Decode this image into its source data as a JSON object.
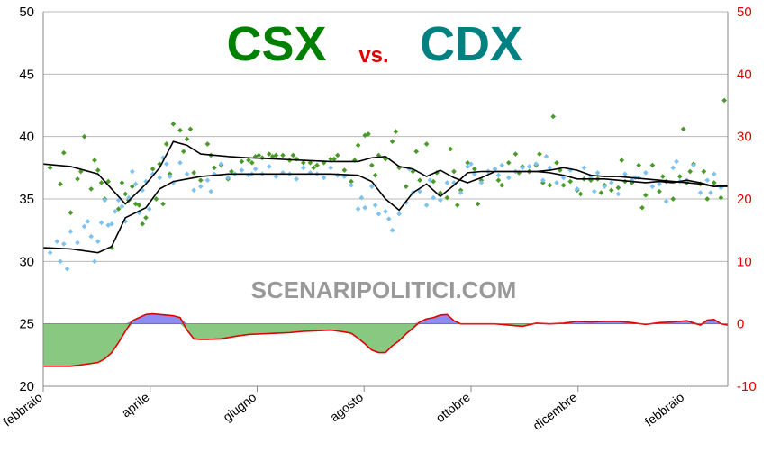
{
  "chart_data": {
    "type": "scatter",
    "title_parts": [
      "CSX",
      "vs.",
      "CDX"
    ],
    "title_colors": [
      "#008000",
      "#e00000",
      "#008080"
    ],
    "watermark": "SCENARIPOLITICI.COM",
    "ylim_left": [
      20,
      50
    ],
    "ylim_right": [
      -10,
      50
    ],
    "yticks_left": [
      "20",
      "25",
      "30",
      "35",
      "40",
      "45",
      "50"
    ],
    "yticks_right": [
      "-10",
      "0",
      "10",
      "20",
      "30",
      "40",
      "50"
    ],
    "xticks": [
      "febbraio",
      "aprile",
      "giugno",
      "agosto",
      "ottobre",
      "dicembre",
      "febbraio"
    ],
    "grid": true,
    "colors": {
      "csx_points": "#4a9a2a",
      "cdx_points": "#7ec3f0",
      "trend": "#000000",
      "diff_line": "#e00000",
      "diff_positive": "#8c8cf0",
      "diff_negative": "#88c880"
    },
    "series": [
      {
        "kind": "trend",
        "axis": "left",
        "x": [
          0,
          4,
          8,
          10,
          12,
          15,
          17,
          19,
          21,
          23,
          25,
          27,
          30,
          34,
          38,
          42,
          46,
          48,
          50,
          52,
          54,
          56,
          58,
          60,
          62,
          64,
          66,
          68,
          70,
          72,
          74,
          76,
          78,
          80,
          82,
          84,
          86,
          88,
          90,
          92,
          94,
          96,
          98,
          100
        ],
        "values": [
          37.8,
          37.6,
          37.0,
          35.8,
          34.6,
          36.2,
          37.5,
          39.6,
          39.3,
          38.6,
          38.5,
          38.4,
          38.3,
          38.2,
          38.1,
          38.0,
          38.0,
          38.3,
          38.4,
          37.6,
          37.4,
          36.8,
          37.3,
          36.7,
          36.3,
          36.7,
          37.2,
          37.2,
          37.2,
          37.2,
          37.3,
          37.5,
          37.3,
          36.9,
          36.8,
          36.8,
          36.7,
          36.6,
          36.5,
          36.4,
          36.3,
          36.2,
          36.0,
          36.1
        ]
      },
      {
        "kind": "trend",
        "axis": "left",
        "x": [
          0,
          4,
          8,
          10,
          12,
          15,
          17,
          19,
          21,
          23,
          25,
          27,
          30,
          34,
          38,
          42,
          46,
          48,
          50,
          52,
          54,
          56,
          58,
          60,
          62,
          64,
          66,
          68,
          70,
          72,
          74,
          76,
          78,
          80,
          82,
          84,
          86,
          88,
          90,
          92,
          94,
          96,
          98,
          100
        ],
        "values": [
          31.1,
          31.0,
          30.7,
          31.2,
          33.5,
          34.3,
          35.8,
          36.4,
          36.6,
          36.8,
          36.9,
          37.0,
          37.0,
          37.0,
          37.0,
          37.0,
          36.9,
          36.4,
          35.0,
          34.1,
          35.5,
          36.2,
          35.2,
          36.1,
          37.1,
          37.2,
          37.2,
          37.2,
          37.2,
          37.2,
          37.1,
          36.9,
          36.6,
          36.6,
          36.6,
          36.5,
          36.4,
          36.3,
          36.4,
          36.3,
          36.5,
          36.3,
          36.0,
          36.0
        ]
      },
      {
        "kind": "difference",
        "axis": "right",
        "x": [
          0,
          2,
          4,
          6,
          8,
          9,
          10,
          11,
          12,
          13,
          14,
          15,
          16,
          17,
          18,
          19,
          20,
          21,
          22,
          23,
          24,
          26,
          28,
          30,
          32,
          34,
          36,
          38,
          40,
          42,
          44,
          45,
          46,
          47,
          48,
          49,
          50,
          51,
          52,
          53,
          54,
          55,
          56,
          57,
          58,
          59,
          60,
          61,
          62,
          63,
          64,
          66,
          68,
          70,
          72,
          74,
          76,
          78,
          80,
          82,
          84,
          86,
          88,
          90,
          92,
          94,
          96,
          97,
          98,
          99,
          100
        ],
        "values": [
          -6.8,
          -6.8,
          -6.8,
          -6.5,
          -6.2,
          -5.6,
          -4.6,
          -3.0,
          -1.2,
          0.5,
          1.0,
          1.5,
          1.6,
          1.5,
          1.4,
          1.3,
          1.0,
          -1.0,
          -2.4,
          -2.5,
          -2.5,
          -2.4,
          -2.0,
          -1.7,
          -1.6,
          -1.5,
          -1.4,
          -1.2,
          -1.1,
          -1.0,
          -1.3,
          -1.5,
          -2.3,
          -3.2,
          -4.2,
          -4.6,
          -4.6,
          -3.5,
          -2.7,
          -1.6,
          -0.7,
          0.3,
          0.8,
          1.0,
          1.4,
          1.5,
          0.5,
          0.0,
          0.0,
          0.0,
          0.0,
          0.0,
          -0.2,
          -0.4,
          0.1,
          0.0,
          0.1,
          0.4,
          0.3,
          0.4,
          0.4,
          0.2,
          -0.1,
          0.2,
          0.3,
          0.5,
          -0.2,
          0.6,
          0.7,
          0.0,
          -0.2
        ]
      },
      {
        "kind": "points",
        "name": "CSX",
        "axis": "left",
        "x": [
          1,
          2.5,
          3,
          4,
          5,
          5.5,
          6,
          7,
          8,
          8.5,
          9,
          9.5,
          10,
          11,
          12,
          12.5,
          13,
          13.5,
          14,
          15,
          16,
          16.5,
          17,
          18,
          18.5,
          19,
          20,
          21,
          22,
          23,
          24,
          25,
          26,
          27,
          28,
          29,
          30,
          31,
          32,
          33,
          34,
          35,
          36,
          37,
          38,
          39,
          40,
          41,
          42,
          43,
          44,
          45,
          46,
          47,
          48,
          49,
          50,
          51,
          52,
          53,
          54,
          55,
          56,
          57,
          58,
          59,
          60,
          61,
          62,
          63,
          64,
          65,
          66,
          67,
          68,
          69,
          70,
          71,
          72,
          73,
          74,
          75,
          76,
          77,
          78,
          79,
          80,
          81,
          82,
          83,
          84,
          85,
          86,
          87,
          88,
          89,
          90,
          91,
          92,
          93,
          94,
          95,
          96,
          97,
          98,
          99,
          7.5,
          11.5,
          14.5,
          17.5,
          21.5,
          24.5,
          27.5,
          30.5,
          33.5,
          36.5,
          39.5,
          42.5,
          45.5,
          48.5,
          51.5,
          54.5,
          57.5,
          60.5,
          63.5,
          66.5,
          69.5,
          72.5,
          75.5,
          78.5,
          81.5,
          84.5,
          87.5,
          90.5,
          93.5,
          96.5,
          99.5,
          20.5,
          31.5,
          47.5,
          59.5,
          74.5,
          94.5
        ],
        "values": [
          37.5,
          36.2,
          38.7,
          33.9,
          36.6,
          37.2,
          40.0,
          35.8,
          37.3,
          36.3,
          35.0,
          36.4,
          31.1,
          34.2,
          35.4,
          34.9,
          36.0,
          34.6,
          34.5,
          33.5,
          37.4,
          35.0,
          37.8,
          39.4,
          37.0,
          41.0,
          40.5,
          39.8,
          37.1,
          36.5,
          39.4,
          37.5,
          37.7,
          36.6,
          37.0,
          38.0,
          38.1,
          38.4,
          38.3,
          38.6,
          38.5,
          38.5,
          38.1,
          38.2,
          37.9,
          37.9,
          37.7,
          37.9,
          38.2,
          38.5,
          37.3,
          36.4,
          39.3,
          40.1,
          37.7,
          38.5,
          38.2,
          39.6,
          37.5,
          36.0,
          37.2,
          36.5,
          39.4,
          36.4,
          35.5,
          35.1,
          37.2,
          35.7,
          37.9,
          37.4,
          36.5,
          37.2,
          37.4,
          36.1,
          37.9,
          38.6,
          37.6,
          37.2,
          37.7,
          36.3,
          36.1,
          37.9,
          36.1,
          36.4,
          35.7,
          36.6,
          36.5,
          36.6,
          36.1,
          35.7,
          35.9,
          36.4,
          36.3,
          37.7,
          35.3,
          37.7,
          35.6,
          36.4,
          35.0,
          36.8,
          36.3,
          37.8,
          36.2,
          35.0,
          36.3,
          35.1,
          38.1,
          36.3,
          33.0,
          34.6,
          40.6,
          38.5,
          37.2,
          37.9,
          38.4,
          38.5,
          37.5,
          38.2,
          38.1,
          36.9,
          40.4,
          38.8,
          37.1,
          34.5,
          34.6,
          36.5,
          37.1,
          38.6,
          37.3,
          35.4,
          35.5,
          38.1,
          34.3,
          36.8,
          40.6,
          37.2,
          42.9,
          38.8,
          38.5,
          40.2,
          39.0,
          41.6,
          37.2
        ]
      },
      {
        "kind": "points",
        "name": "CDX",
        "axis": "left",
        "x": [
          1,
          2,
          2.5,
          3,
          4,
          5,
          6,
          6.5,
          7,
          8,
          8.5,
          9,
          9.5,
          10,
          11,
          11.5,
          12,
          12.5,
          13,
          13.5,
          14,
          15,
          15.5,
          16,
          17,
          17.5,
          18,
          19,
          20,
          21,
          22,
          23,
          24,
          25,
          26,
          27,
          28,
          29,
          30,
          31,
          32,
          33,
          34,
          35,
          36,
          37,
          38,
          39,
          40,
          41,
          42,
          43,
          44,
          45,
          46,
          47,
          48,
          49,
          50,
          51,
          52,
          53,
          54,
          55,
          56,
          57,
          58,
          59,
          60,
          61,
          62,
          63,
          64,
          65,
          66,
          67,
          68,
          69,
          70,
          71,
          72,
          73,
          74,
          75,
          76,
          77,
          78,
          79,
          80,
          81,
          82,
          83,
          84,
          85,
          86,
          87,
          88,
          89,
          90,
          91,
          92,
          93,
          94,
          95,
          96,
          97,
          98,
          99,
          3.5,
          7.5,
          10.5,
          14.5,
          18.5,
          24.5,
          30.5,
          46.5,
          48.5,
          50.5,
          53.5,
          56.5,
          62.5,
          66.5,
          73.5,
          80.5,
          86.5,
          92.5,
          97.5
        ],
        "values": [
          30.7,
          31.6,
          30.0,
          31.4,
          32.4,
          31.5,
          32.8,
          33.2,
          32.0,
          31.6,
          33.1,
          34.9,
          32.9,
          33.0,
          34.9,
          34.4,
          33.2,
          35.1,
          37.2,
          36.2,
          33.9,
          36.4,
          34.2,
          37.0,
          36.7,
          38.3,
          37.8,
          36.3,
          37.9,
          37.0,
          35.7,
          36.0,
          36.5,
          37.0,
          37.8,
          36.7,
          37.0,
          37.3,
          36.9,
          37.4,
          37.0,
          37.6,
          36.8,
          37.1,
          37.0,
          36.6,
          37.5,
          37.1,
          37.0,
          36.7,
          37.5,
          36.9,
          36.8,
          36.1,
          34.2,
          34.3,
          36.0,
          33.8,
          34.0,
          32.5,
          33.8,
          34.7,
          35.5,
          35.6,
          34.5,
          35.1,
          34.9,
          36.3,
          36.3,
          35.5,
          37.6,
          37.0,
          36.3,
          37.2,
          37.4,
          37.7,
          36.7,
          37.2,
          37.5,
          37.6,
          37.8,
          36.5,
          37.5,
          36.3,
          36.7,
          37.3,
          35.8,
          37.5,
          36.7,
          37.1,
          36.0,
          36.3,
          35.4,
          37.0,
          36.5,
          36.7,
          37.1,
          36.0,
          36.2,
          34.8,
          37.5,
          36.4,
          36.5,
          37.7,
          35.5,
          36.5,
          37.0,
          35.9,
          29.4,
          30.0,
          34.0,
          35.7,
          36.8,
          35.6,
          37.0,
          35.1,
          34.5,
          33.4,
          37.4,
          36.5,
          37.8,
          36.9,
          38.4,
          35.6,
          36.7,
          38.0,
          35.5
        ]
      }
    ]
  }
}
